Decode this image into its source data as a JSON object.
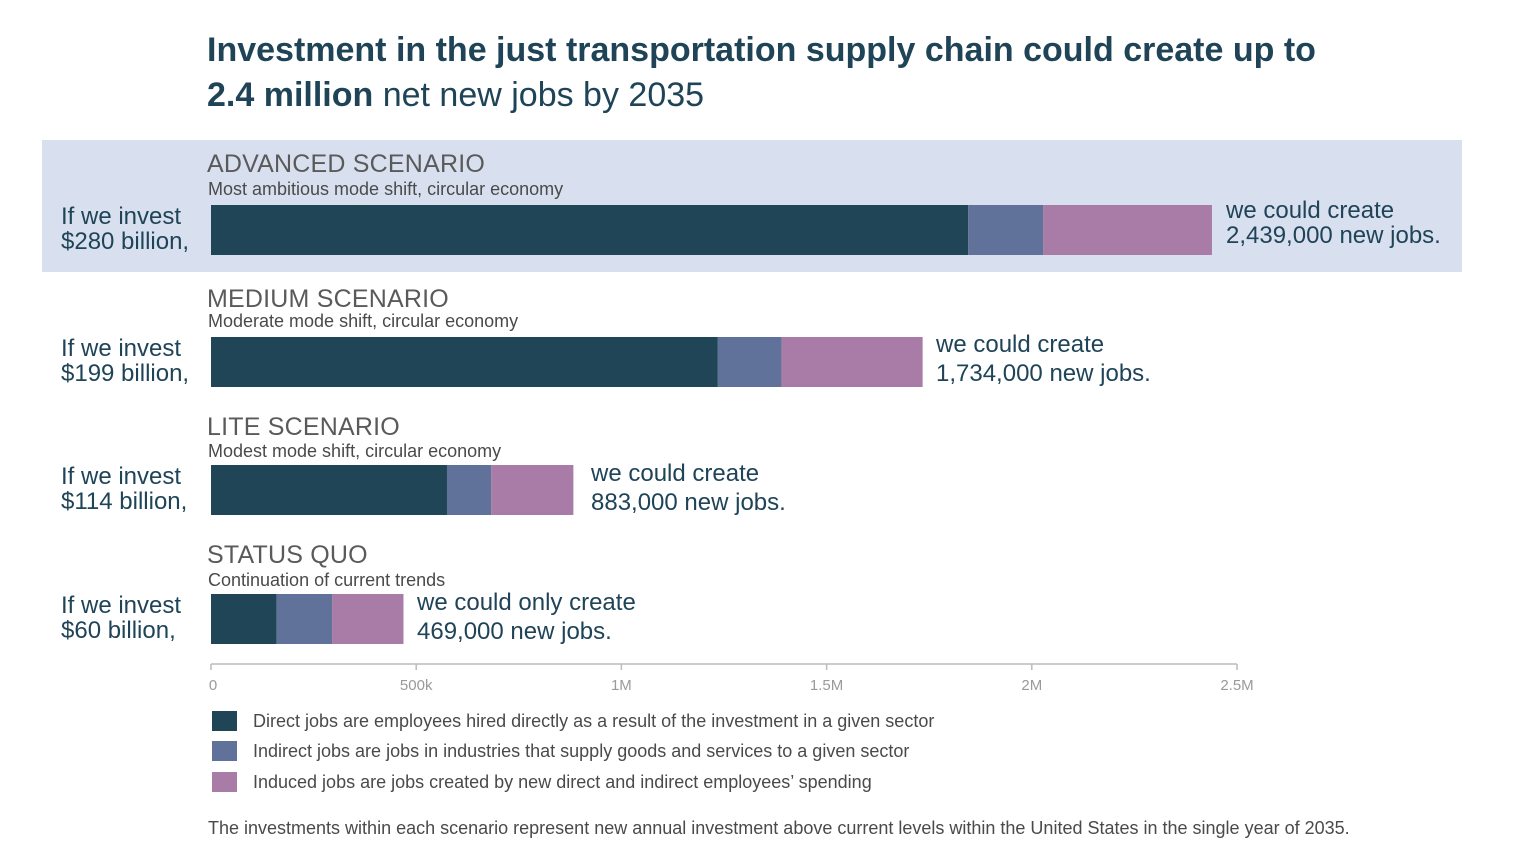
{
  "title": {
    "line1": "Investment in the just transportation supply chain could create up to",
    "bold": "2.4 million",
    "line2_rest": " net new jobs by 2035"
  },
  "chart_data": {
    "type": "bar",
    "orientation": "horizontal",
    "stacked": true,
    "categories": [
      "ADVANCED SCENARIO",
      "MEDIUM SCENARIO",
      "LITE SCENARIO",
      "STATUS QUO"
    ],
    "subtitles": [
      "Most ambitious mode shift, circular economy",
      "Moderate mode shift, circular economy",
      "Modest mode shift, circular economy",
      "Continuation of current trends"
    ],
    "invest_labels": [
      [
        "If we invest",
        "$280 billion,"
      ],
      [
        "If we invest",
        "$199 billion,"
      ],
      [
        "If we invest",
        "$114 billion,"
      ],
      [
        "If we invest",
        "$60 billion,"
      ]
    ],
    "create_labels": [
      [
        "we could create",
        "2,439,000 new jobs."
      ],
      [
        "we could create",
        "1,734,000 new jobs."
      ],
      [
        "we could create",
        "883,000 new jobs."
      ],
      [
        "we could only create",
        "469,000 new jobs."
      ]
    ],
    "series": [
      {
        "key": "direct",
        "values": [
          1845000,
          1235000,
          575000,
          160000
        ]
      },
      {
        "key": "indirect",
        "values": [
          183000,
          155000,
          108000,
          135000
        ]
      },
      {
        "key": "induced",
        "values": [
          411000,
          344000,
          200000,
          174000
        ]
      }
    ],
    "xlim": [
      0,
      2500000
    ],
    "xticks": [
      0,
      500000,
      1000000,
      1500000,
      2000000,
      2500000
    ],
    "xtick_labels": [
      "0",
      "500k",
      "1M",
      "1.5M",
      "2M",
      "2.5M"
    ],
    "highlighted_category": "ADVANCED SCENARIO",
    "grid": false
  },
  "colors": {
    "direct": "#1f4556",
    "indirect": "#61729a",
    "induced": "#a87ca6",
    "highlight": "#d8e0f0",
    "axis": "#bbbbbb"
  },
  "legend": [
    {
      "key": "direct",
      "text": "Direct jobs are employees hired directly as a result of the investment in a given sector"
    },
    {
      "key": "indirect",
      "text": "Indirect jobs are jobs in industries that supply goods and services to a given sector"
    },
    {
      "key": "induced",
      "text": "Induced jobs are jobs created by new direct and indirect employees’ spending"
    }
  ],
  "footnote": "The investments within each scenario represent new annual investment above current levels within the United States in the single year of 2035."
}
